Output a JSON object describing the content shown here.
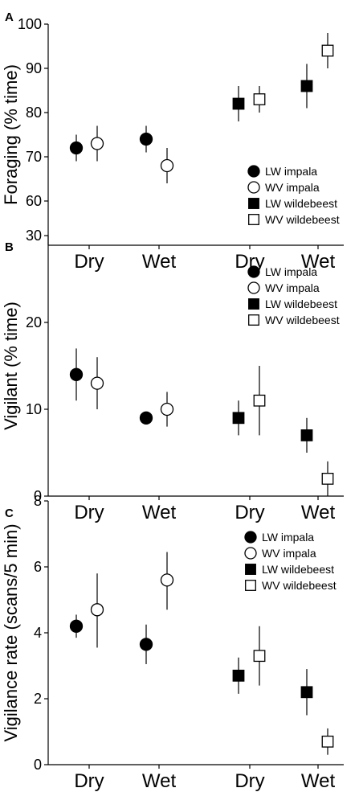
{
  "chart_data": [
    {
      "type": "scatter",
      "panel_label": "A",
      "ylabel": "Foraging (% time)",
      "ylim": [
        50,
        100
      ],
      "yticks": [
        60,
        70,
        80,
        90,
        100
      ],
      "categories": [
        "Dry",
        "Wet",
        "Dry",
        "Wet"
      ],
      "legend_position": "right-middle",
      "series": [
        {
          "name": "LW impala",
          "marker": "filled-circle",
          "values": [
            72,
            74
          ],
          "lower": [
            69,
            71
          ],
          "upper": [
            75,
            77
          ],
          "category_index": [
            0,
            1
          ]
        },
        {
          "name": "WV impala",
          "marker": "open-circle",
          "values": [
            73,
            68
          ],
          "lower": [
            69,
            64
          ],
          "upper": [
            77,
            72
          ],
          "category_index": [
            0,
            1
          ]
        },
        {
          "name": "LW wildebeest",
          "marker": "filled-square",
          "values": [
            82,
            86
          ],
          "lower": [
            78,
            81
          ],
          "upper": [
            86,
            91
          ],
          "category_index": [
            2,
            3
          ]
        },
        {
          "name": "WV wildebeest",
          "marker": "open-square",
          "values": [
            83,
            94
          ],
          "lower": [
            80,
            90
          ],
          "upper": [
            86,
            98
          ],
          "category_index": [
            2,
            3
          ]
        }
      ]
    },
    {
      "type": "scatter",
      "panel_label": "B",
      "ylabel": "Vigilant (% time)",
      "ylim": [
        0,
        30
      ],
      "yticks": [
        0,
        10,
        20,
        30
      ],
      "categories": [
        "Dry",
        "Wet",
        "Dry",
        "Wet"
      ],
      "legend_position": "top-right",
      "series": [
        {
          "name": "LW impala",
          "marker": "filled-circle",
          "values": [
            14,
            9
          ],
          "lower": [
            11,
            8.5
          ],
          "upper": [
            17,
            9.5
          ],
          "category_index": [
            0,
            1
          ]
        },
        {
          "name": "WV impala",
          "marker": "open-circle",
          "values": [
            13,
            10
          ],
          "lower": [
            10,
            8
          ],
          "upper": [
            16,
            12
          ],
          "category_index": [
            0,
            1
          ]
        },
        {
          "name": "LW wildebeest",
          "marker": "filled-square",
          "values": [
            9,
            7
          ],
          "lower": [
            7,
            5
          ],
          "upper": [
            11,
            9
          ],
          "category_index": [
            2,
            3
          ]
        },
        {
          "name": "WV wildebeest",
          "marker": "open-square",
          "values": [
            11,
            2
          ],
          "lower": [
            7,
            0
          ],
          "upper": [
            15,
            4
          ],
          "category_index": [
            2,
            3
          ]
        }
      ]
    },
    {
      "type": "scatter",
      "panel_label": "C",
      "ylabel": "Vigilance rate (scans/5 min)",
      "ylim": [
        0,
        8
      ],
      "yticks": [
        0,
        2,
        4,
        6,
        8
      ],
      "categories": [
        "Dry",
        "Wet",
        "Dry",
        "Wet"
      ],
      "legend_position": "top-right",
      "series": [
        {
          "name": "LW impala",
          "marker": "filled-circle",
          "values": [
            4.2,
            3.65
          ],
          "lower": [
            3.85,
            3.05
          ],
          "upper": [
            4.55,
            4.25
          ],
          "category_index": [
            0,
            1
          ]
        },
        {
          "name": "WV impala",
          "marker": "open-circle",
          "values": [
            4.7,
            5.6
          ],
          "lower": [
            3.55,
            4.7
          ],
          "upper": [
            5.8,
            6.45
          ],
          "category_index": [
            0,
            1
          ]
        },
        {
          "name": "LW wildebeest",
          "marker": "filled-square",
          "values": [
            2.7,
            2.2
          ],
          "lower": [
            2.15,
            1.5
          ],
          "upper": [
            3.25,
            2.9
          ],
          "category_index": [
            2,
            3
          ]
        },
        {
          "name": "WV wildebeest",
          "marker": "open-square",
          "values": [
            3.3,
            0.7
          ],
          "lower": [
            2.4,
            0.3
          ],
          "upper": [
            4.2,
            1.1
          ],
          "category_index": [
            2,
            3
          ]
        }
      ]
    }
  ]
}
